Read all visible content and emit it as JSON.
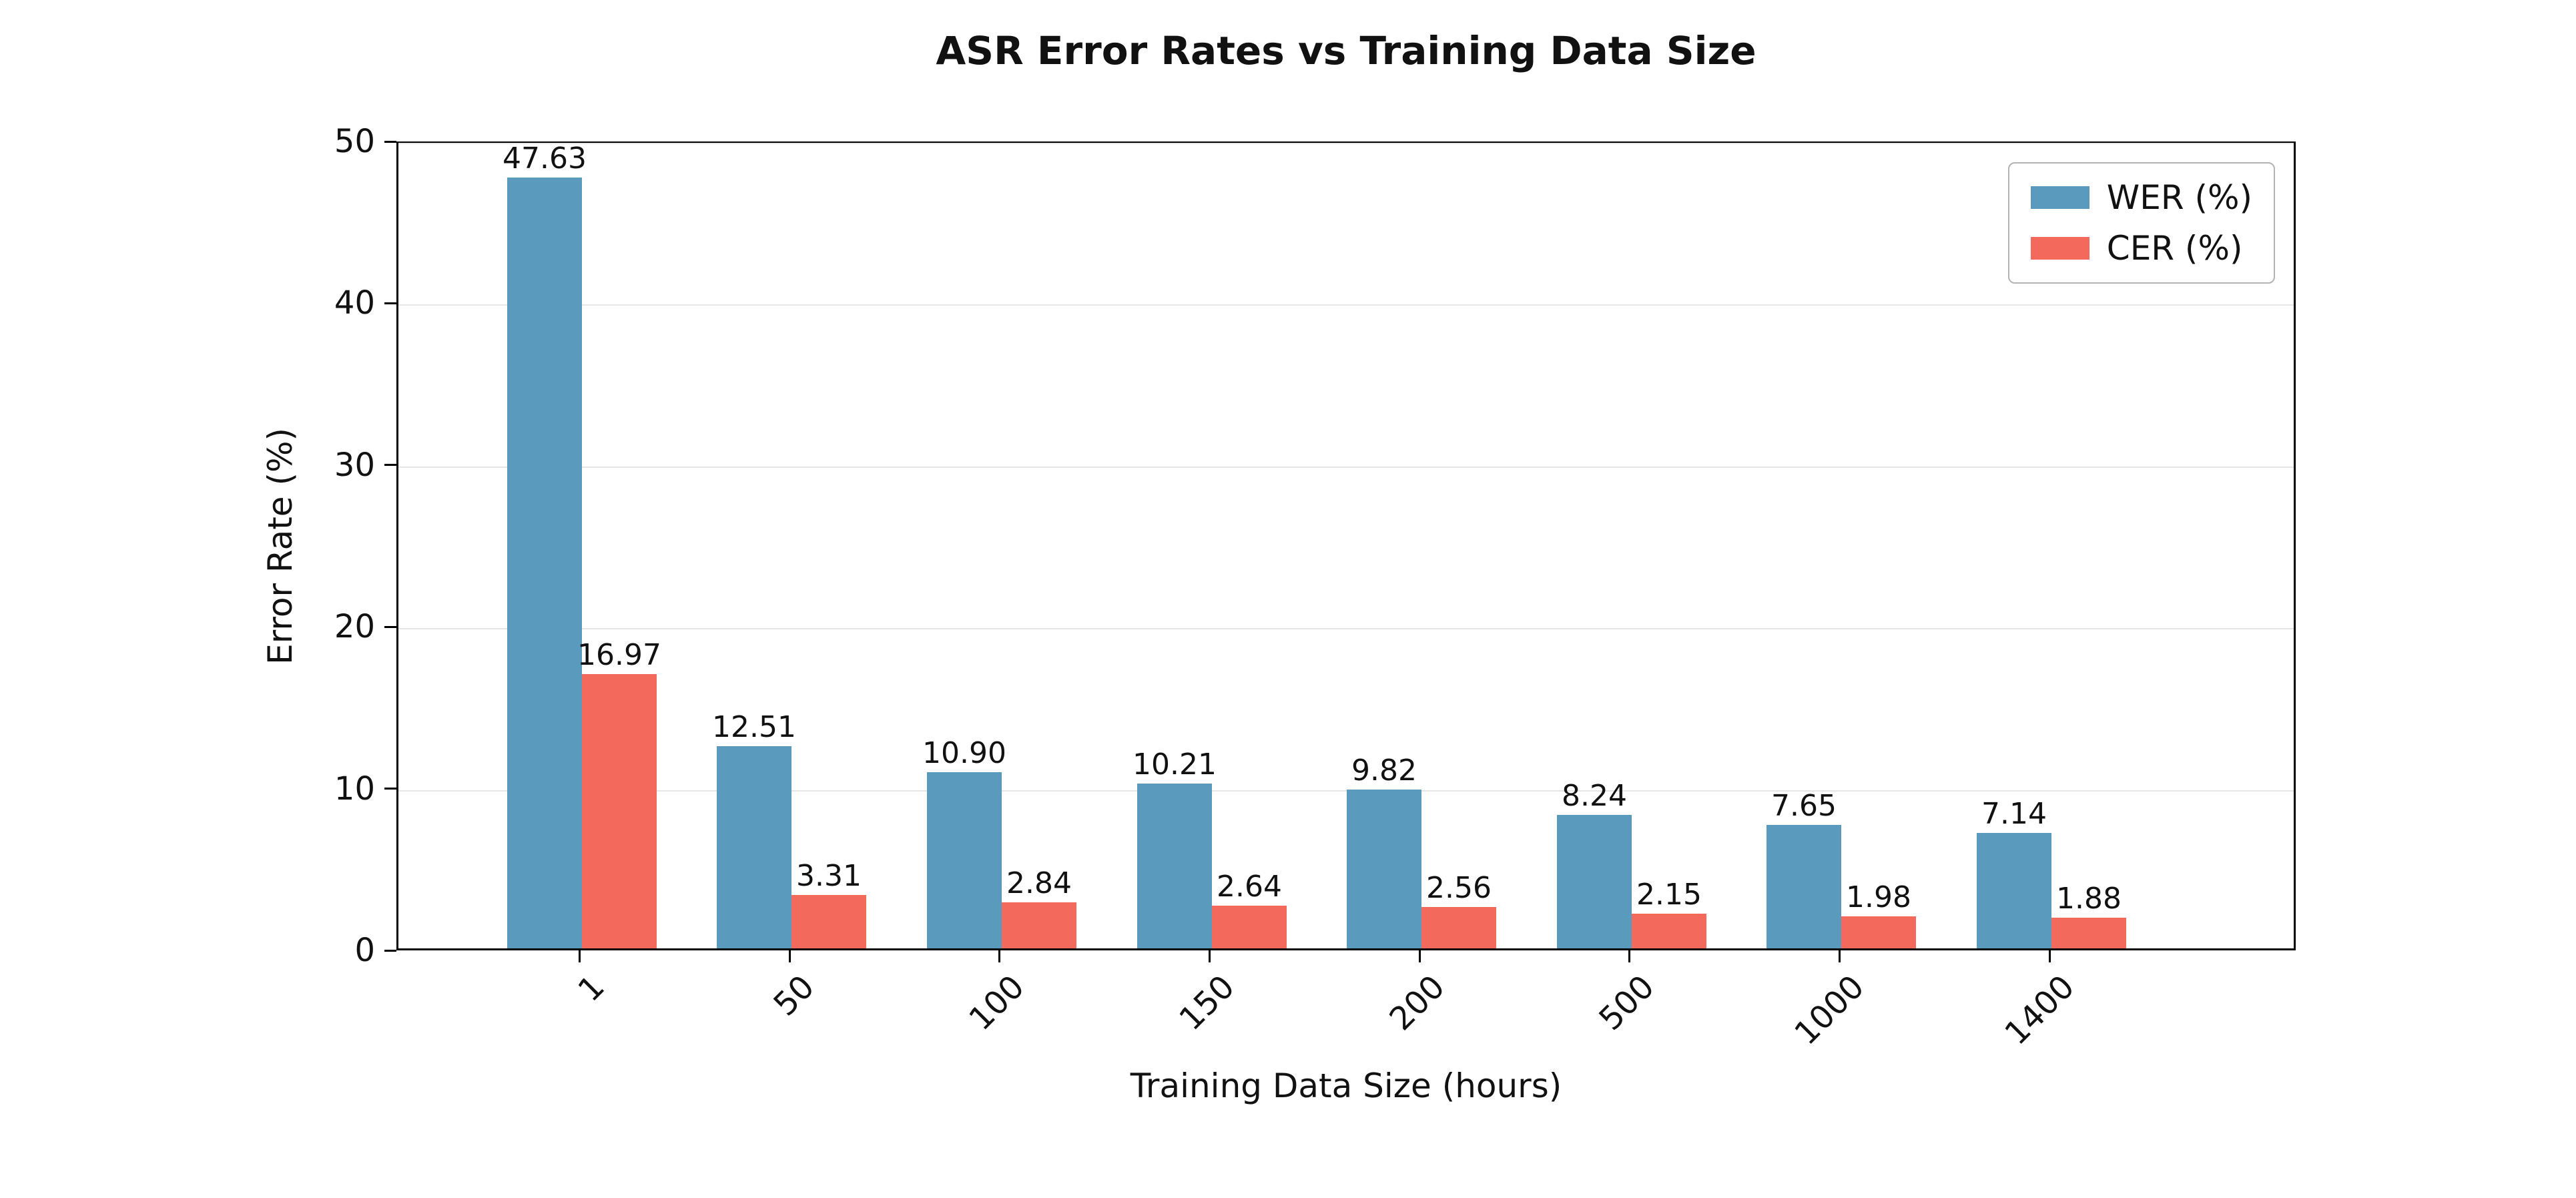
{
  "chart_data": {
    "type": "bar",
    "title": "ASR Error Rates vs Training Data Size",
    "xlabel": "Training Data Size (hours)",
    "ylabel": "Error Rate (%)",
    "categories": [
      "1",
      "50",
      "100",
      "150",
      "200",
      "500",
      "1000",
      "1400"
    ],
    "series": [
      {
        "name": "WER (%)",
        "color": "#5A9BBD",
        "values": [
          47.63,
          12.51,
          10.9,
          10.21,
          9.82,
          8.24,
          7.65,
          7.14
        ]
      },
      {
        "name": "CER (%)",
        "color": "#F3695C",
        "values": [
          16.97,
          3.31,
          2.84,
          2.64,
          2.56,
          2.15,
          1.98,
          1.88
        ]
      }
    ],
    "ylim": [
      0,
      50
    ],
    "yticks": [
      0,
      10,
      20,
      30,
      40,
      50
    ],
    "grid": true,
    "legend_position": "upper right",
    "value_label_decimals": 2,
    "background_color": "#ffffff",
    "gridline_color": "#e5e5e5"
  }
}
